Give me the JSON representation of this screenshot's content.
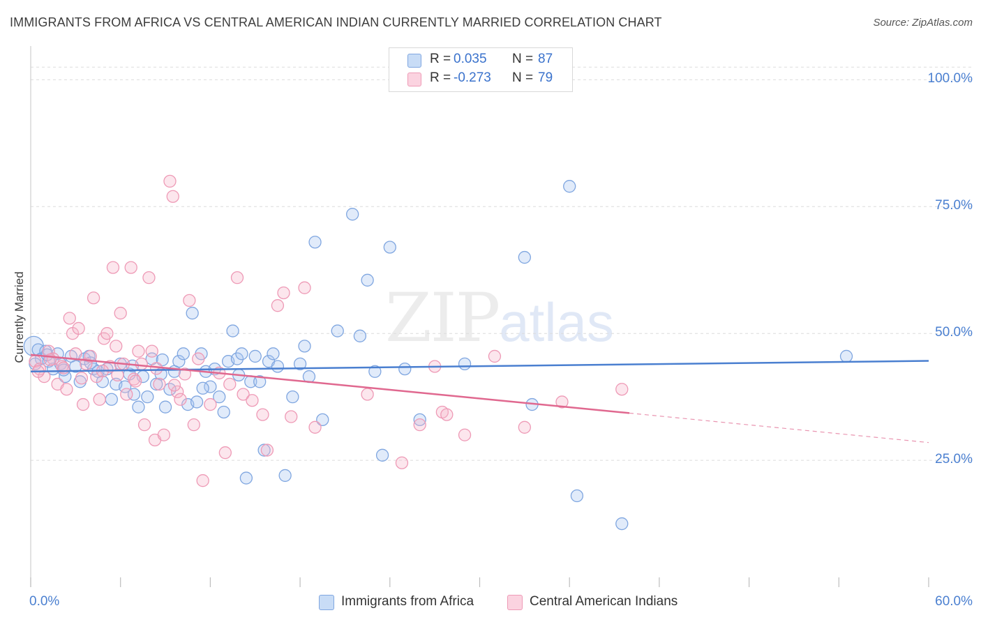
{
  "header": {
    "title": "IMMIGRANTS FROM AFRICA VS CENTRAL AMERICAN INDIAN CURRENTLY MARRIED CORRELATION CHART",
    "source": "Source: ZipAtlas.com"
  },
  "watermark": {
    "zip": "ZIP",
    "atlas": "atlas"
  },
  "stats": [
    {
      "r_label": "R =",
      "r_value": "0.035",
      "n_label": "N =",
      "n_value": "87",
      "color": "#a8c6f0"
    },
    {
      "r_label": "R =",
      "r_value": "-0.273",
      "n_label": "N =",
      "n_value": "79",
      "color": "#f5b8cc"
    }
  ],
  "legend": {
    "items": [
      {
        "label": "Immigrants from Africa",
        "color": "#a8c6f0"
      },
      {
        "label": "Central American Indians",
        "color": "#f5b8cc"
      }
    ]
  },
  "chart_data": {
    "type": "scatter",
    "title": "IMMIGRANTS FROM AFRICA VS CENTRAL AMERICAN INDIAN CURRENTLY MARRIED CORRELATION CHART",
    "xlabel": "",
    "ylabel": "Currently Married",
    "xlim": [
      0,
      60
    ],
    "ylim": [
      0,
      105
    ],
    "x_tick_labels": [
      "0.0%",
      "60.0%"
    ],
    "y_ticks": [
      25,
      50,
      75,
      100
    ],
    "y_tick_labels": [
      "25.0%",
      "50.0%",
      "75.0%",
      "100.0%"
    ],
    "grid": true,
    "colors": {
      "blue": "#4a7fd0",
      "pink": "#e0688f",
      "blue_fill": "#a8c6f0",
      "pink_fill": "#f5b8cc"
    },
    "series": [
      {
        "name": "Immigrants from Africa",
        "trend": {
          "x": [
            0,
            60
          ],
          "y": [
            42.5,
            44.6
          ],
          "dashed_after": null
        },
        "points": [
          [
            0.2,
            47.5
          ],
          [
            0.5,
            46.8
          ],
          [
            0.7,
            45.0
          ],
          [
            1.0,
            46.5
          ],
          [
            1.2,
            44.5
          ],
          [
            1.5,
            43.0
          ],
          [
            1.8,
            46.0
          ],
          [
            2.0,
            44.0
          ],
          [
            2.3,
            41.5
          ],
          [
            2.7,
            45.5
          ],
          [
            3.0,
            43.5
          ],
          [
            3.3,
            40.5
          ],
          [
            3.6,
            45.0
          ],
          [
            3.9,
            45.5
          ],
          [
            4.2,
            43.0
          ],
          [
            4.5,
            42.5
          ],
          [
            4.8,
            40.5
          ],
          [
            5.1,
            43.0
          ],
          [
            5.4,
            37.0
          ],
          [
            5.7,
            40.0
          ],
          [
            6.0,
            44.0
          ],
          [
            6.3,
            39.5
          ],
          [
            6.6,
            42.0
          ],
          [
            6.9,
            38.0
          ],
          [
            7.2,
            35.5
          ],
          [
            7.5,
            41.5
          ],
          [
            7.8,
            37.5
          ],
          [
            8.1,
            45.0
          ],
          [
            8.4,
            40.0
          ],
          [
            8.7,
            42.0
          ],
          [
            9.0,
            35.5
          ],
          [
            9.3,
            39.0
          ],
          [
            9.6,
            42.5
          ],
          [
            9.9,
            44.5
          ],
          [
            10.2,
            46.0
          ],
          [
            10.5,
            36.0
          ],
          [
            10.8,
            54.0
          ],
          [
            11.1,
            36.5
          ],
          [
            11.4,
            46.0
          ],
          [
            11.7,
            42.5
          ],
          [
            12.0,
            39.5
          ],
          [
            12.3,
            43.0
          ],
          [
            12.6,
            37.5
          ],
          [
            12.9,
            34.5
          ],
          [
            13.2,
            44.5
          ],
          [
            13.5,
            50.5
          ],
          [
            13.8,
            45.0
          ],
          [
            14.1,
            46.0
          ],
          [
            14.4,
            21.5
          ],
          [
            14.7,
            40.5
          ],
          [
            15.0,
            45.5
          ],
          [
            15.3,
            40.5
          ],
          [
            15.6,
            27.0
          ],
          [
            15.9,
            44.5
          ],
          [
            16.2,
            46.0
          ],
          [
            16.5,
            43.5
          ],
          [
            17.0,
            22.0
          ],
          [
            17.5,
            37.5
          ],
          [
            18.0,
            44.0
          ],
          [
            18.3,
            47.5
          ],
          [
            18.6,
            41.5
          ],
          [
            19.0,
            68.0
          ],
          [
            19.5,
            33.0
          ],
          [
            20.5,
            50.5
          ],
          [
            21.5,
            73.5
          ],
          [
            22.0,
            49.5
          ],
          [
            22.5,
            60.5
          ],
          [
            23.0,
            42.5
          ],
          [
            23.5,
            26.0
          ],
          [
            24.0,
            67.0
          ],
          [
            25.0,
            43.0
          ],
          [
            26.0,
            33.0
          ],
          [
            29.0,
            44.0
          ],
          [
            33.0,
            65.0
          ],
          [
            33.5,
            36.0
          ],
          [
            36.0,
            79.0
          ],
          [
            36.5,
            18.0
          ],
          [
            39.5,
            12.5
          ],
          [
            54.5,
            45.5
          ],
          [
            0.3,
            44.0
          ],
          [
            1.1,
            45.8
          ],
          [
            2.2,
            42.8
          ],
          [
            4.0,
            44.2
          ],
          [
            6.8,
            43.6
          ],
          [
            8.8,
            44.8
          ],
          [
            11.5,
            39.2
          ],
          [
            13.9,
            41.8
          ]
        ]
      },
      {
        "name": "Central American Indians",
        "trend": {
          "x": [
            0,
            40,
            60
          ],
          "y": [
            45.8,
            34.3,
            28.5
          ],
          "dashed_after": 40
        },
        "points": [
          [
            0.3,
            44.5
          ],
          [
            0.6,
            43.0
          ],
          [
            0.9,
            41.5
          ],
          [
            1.2,
            46.5
          ],
          [
            1.5,
            45.0
          ],
          [
            1.8,
            40.0
          ],
          [
            2.1,
            43.5
          ],
          [
            2.4,
            39.0
          ],
          [
            2.6,
            53.0
          ],
          [
            2.8,
            50.0
          ],
          [
            3.0,
            46.0
          ],
          [
            3.2,
            51.0
          ],
          [
            3.5,
            36.0
          ],
          [
            3.7,
            44.0
          ],
          [
            4.0,
            45.5
          ],
          [
            4.2,
            57.0
          ],
          [
            4.4,
            41.5
          ],
          [
            4.6,
            37.0
          ],
          [
            4.9,
            49.0
          ],
          [
            5.1,
            50.0
          ],
          [
            5.3,
            43.5
          ],
          [
            5.5,
            63.0
          ],
          [
            5.7,
            47.5
          ],
          [
            6.0,
            54.0
          ],
          [
            6.2,
            44.0
          ],
          [
            6.4,
            38.0
          ],
          [
            6.7,
            63.0
          ],
          [
            6.9,
            41.0
          ],
          [
            7.2,
            46.5
          ],
          [
            7.4,
            44.0
          ],
          [
            7.6,
            32.0
          ],
          [
            7.9,
            61.0
          ],
          [
            8.1,
            46.5
          ],
          [
            8.3,
            29.0
          ],
          [
            8.6,
            40.0
          ],
          [
            8.9,
            30.0
          ],
          [
            9.3,
            80.0
          ],
          [
            9.5,
            77.0
          ],
          [
            9.8,
            38.5
          ],
          [
            10.0,
            37.0
          ],
          [
            10.3,
            42.0
          ],
          [
            10.6,
            56.5
          ],
          [
            10.9,
            32.0
          ],
          [
            11.2,
            45.0
          ],
          [
            11.5,
            21.0
          ],
          [
            12.0,
            36.0
          ],
          [
            13.0,
            26.5
          ],
          [
            13.3,
            40.0
          ],
          [
            13.8,
            61.0
          ],
          [
            14.2,
            38.0
          ],
          [
            15.5,
            34.0
          ],
          [
            15.8,
            27.0
          ],
          [
            16.5,
            55.5
          ],
          [
            16.9,
            58.0
          ],
          [
            18.3,
            59.0
          ],
          [
            19.0,
            31.5
          ],
          [
            22.5,
            38.0
          ],
          [
            24.8,
            24.5
          ],
          [
            26.0,
            32.0
          ],
          [
            27.0,
            43.5
          ],
          [
            27.5,
            34.5
          ],
          [
            27.8,
            34.0
          ],
          [
            29.0,
            30.0
          ],
          [
            31.0,
            45.5
          ],
          [
            33.0,
            31.5
          ],
          [
            35.5,
            36.5
          ],
          [
            39.5,
            39.0
          ],
          [
            0.5,
            42.5
          ],
          [
            1.3,
            44.8
          ],
          [
            2.2,
            43.2
          ],
          [
            3.4,
            41.2
          ],
          [
            4.8,
            42.6
          ],
          [
            5.8,
            41.8
          ],
          [
            7.0,
            40.6
          ],
          [
            8.4,
            43.1
          ],
          [
            9.6,
            39.8
          ],
          [
            12.6,
            42.2
          ],
          [
            14.8,
            36.8
          ],
          [
            17.4,
            33.6
          ]
        ]
      }
    ]
  }
}
